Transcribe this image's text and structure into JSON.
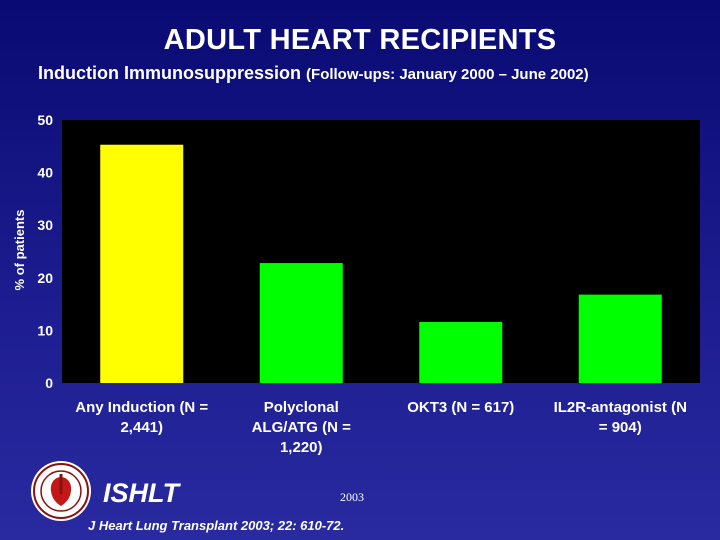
{
  "header": {
    "title": "ADULT HEART RECIPIENTS",
    "subtitle_main": "Induction Immunosuppression",
    "subtitle_paren": "(Follow-ups: January 2000 – June 2002)"
  },
  "footer": {
    "brand": "ISHLT",
    "year": "2003",
    "citation": "J Heart Lung Transplant 2003; 22: 610-72.",
    "logo_icon": "ishlt-seal-icon"
  },
  "chart_data": {
    "type": "bar",
    "title": "",
    "xlabel": "",
    "ylabel": "% of patients",
    "ylim": [
      0,
      50
    ],
    "yticks": [
      0,
      10,
      20,
      30,
      40,
      50
    ],
    "grid": false,
    "categories": [
      [
        "Any Induction (N =",
        "2,441)"
      ],
      [
        "Polyclonal",
        "ALG/ATG (N =",
        "1,220)"
      ],
      [
        "OKT3 (N = 617)"
      ],
      [
        "IL2R-antagonist (N",
        "= 904)"
      ]
    ],
    "values": [
      45.3,
      22.8,
      11.6,
      16.8
    ],
    "colors": [
      "#ffff00",
      "#00ff00",
      "#00ff00",
      "#00ff00"
    ],
    "background_color": "#000000",
    "page_background_color": "#1a1a88"
  }
}
